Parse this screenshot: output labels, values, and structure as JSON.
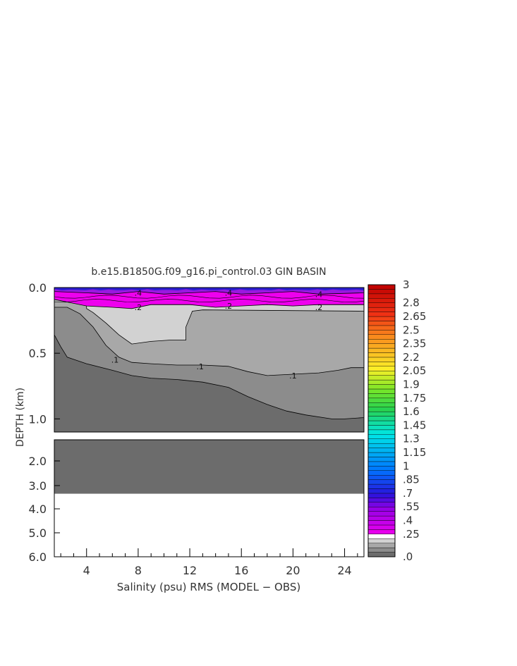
{
  "chart_data": {
    "type": "heatmap",
    "title": "b.e15.B1850G.f09_g16.pi_control.03 GIN BASIN",
    "xlabel": "Salinity (psu) RMS (MODEL − OBS)",
    "ylabel": "DEPTH (km)",
    "x_ticks": [
      "4",
      "8",
      "12",
      "16",
      "20",
      "24"
    ],
    "x_tick_values": [
      4,
      8,
      12,
      16,
      20,
      24
    ],
    "xlim": [
      1.5,
      25.5
    ],
    "upper_panel": {
      "ylim": [
        0.0,
        1.1
      ],
      "y_ticks": [
        "0.0",
        "0.5",
        "1.0"
      ],
      "y_tick_values": [
        0.0,
        0.5,
        1.0
      ]
    },
    "lower_panel": {
      "ylim": [
        1.1,
        6.0
      ],
      "y_ticks": [
        "2.0",
        "3.0",
        "4.0",
        "5.0",
        "6.0"
      ],
      "y_tick_values": [
        2.0,
        3.0,
        4.0,
        5.0,
        6.0
      ]
    },
    "colorbar": {
      "labels": [
        "3",
        "2.8",
        "2.65",
        "2.5",
        "2.35",
        "2.2",
        "2.05",
        "1.9",
        "1.75",
        "1.6",
        "1.45",
        "1.3",
        "1.15",
        "1",
        ".85",
        ".7",
        ".55",
        ".4",
        ".25",
        ".0"
      ],
      "label_values": [
        3,
        2.8,
        2.65,
        2.5,
        2.35,
        2.2,
        2.05,
        1.9,
        1.75,
        1.6,
        1.45,
        1.3,
        1.15,
        1.0,
        0.85,
        0.7,
        0.55,
        0.4,
        0.25,
        0.0
      ]
    },
    "contour_labels": [
      {
        "text": ".4",
        "x": 8.0,
        "y": 0.04
      },
      {
        "text": ".4",
        "x": 15.0,
        "y": 0.04
      },
      {
        "text": ".4",
        "x": 22.0,
        "y": 0.05
      },
      {
        "text": ".2",
        "x": 8.0,
        "y": 0.15
      },
      {
        "text": ".2",
        "x": 15.0,
        "y": 0.14
      },
      {
        "text": ".2",
        "x": 22.0,
        "y": 0.15
      },
      {
        "text": ".1",
        "x": 6.2,
        "y": 0.55
      },
      {
        "text": ".1",
        "x": 12.8,
        "y": 0.6
      },
      {
        "text": ".1",
        "x": 20.0,
        "y": 0.67
      }
    ],
    "fields": [
      {
        "level": "0.0-0.05",
        "color": "#6c6c6c",
        "bottom_depth_km": 3.35
      },
      {
        "level": "0.05-0.1",
        "color": "#8c8c8c",
        "boundary": [
          [
            1.5,
            0.36
          ],
          [
            2.0,
            0.45
          ],
          [
            2.5,
            0.53
          ],
          [
            4,
            0.58
          ],
          [
            6,
            0.63
          ],
          [
            7.5,
            0.67
          ],
          [
            9,
            0.69
          ],
          [
            11,
            0.7
          ],
          [
            13,
            0.72
          ],
          [
            15,
            0.76
          ],
          [
            16.5,
            0.83
          ],
          [
            18,
            0.89
          ],
          [
            19.5,
            0.94
          ],
          [
            21,
            0.97
          ],
          [
            23,
            1.0
          ],
          [
            24,
            1.0
          ],
          [
            25.5,
            0.99
          ]
        ]
      },
      {
        "level": "0.1-0.15",
        "color": "#a8a8a8",
        "boundary": [
          [
            1.5,
            0.15
          ],
          [
            2.5,
            0.15
          ],
          [
            3.5,
            0.2
          ],
          [
            4.5,
            0.3
          ],
          [
            5.5,
            0.44
          ],
          [
            6.5,
            0.53
          ],
          [
            7.5,
            0.57
          ],
          [
            9,
            0.58
          ],
          [
            11,
            0.59
          ],
          [
            13,
            0.59
          ],
          [
            15,
            0.6
          ],
          [
            16.5,
            0.64
          ],
          [
            18,
            0.67
          ],
          [
            20,
            0.66
          ],
          [
            22,
            0.65
          ],
          [
            23.5,
            0.63
          ],
          [
            24.5,
            0.61
          ],
          [
            25.5,
            0.61
          ]
        ]
      },
      {
        "level": "0.15-0.2",
        "color": "#d2d2d2",
        "boundary": [
          [
            4,
            0.16
          ],
          [
            4.5,
            0.19
          ],
          [
            5.5,
            0.27
          ],
          [
            6.5,
            0.36
          ],
          [
            7.5,
            0.43
          ],
          [
            9,
            0.41
          ],
          [
            10.5,
            0.4
          ],
          [
            11.7,
            0.4
          ],
          [
            11.7,
            0.3
          ],
          [
            12.2,
            0.18
          ],
          [
            13,
            0.17
          ],
          [
            25.5,
            0.18
          ]
        ]
      },
      {
        "level": "0.25-0.4",
        "color": "#ee00ee",
        "boundary": [
          [
            1.5,
            0.09
          ],
          [
            3,
            0.12
          ],
          [
            4,
            0.14
          ],
          [
            6,
            0.15
          ],
          [
            7.5,
            0.16
          ],
          [
            9,
            0.13
          ],
          [
            12,
            0.13
          ],
          [
            14,
            0.15
          ],
          [
            16,
            0.14
          ],
          [
            18,
            0.13
          ],
          [
            20,
            0.14
          ],
          [
            22,
            0.13
          ],
          [
            24,
            0.13
          ],
          [
            25.5,
            0.13
          ]
        ]
      },
      {
        "level": "0.4-0.7",
        "color": "#9a18e0",
        "boundary": [
          [
            1.5,
            0.03
          ],
          [
            4,
            0.04
          ],
          [
            6,
            0.05
          ],
          [
            8,
            0.03
          ],
          [
            10,
            0.05
          ],
          [
            12,
            0.04
          ],
          [
            14,
            0.03
          ],
          [
            16,
            0.05
          ],
          [
            18,
            0.04
          ],
          [
            20,
            0.03
          ],
          [
            22,
            0.05
          ],
          [
            25.5,
            0.04
          ]
        ]
      }
    ]
  }
}
